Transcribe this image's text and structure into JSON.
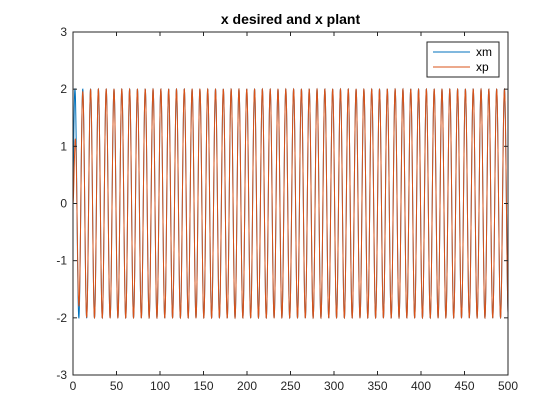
{
  "chart_data": {
    "type": "line",
    "title": "x desired and x plant",
    "xlabel": "",
    "ylabel": "",
    "xlim": [
      0,
      500
    ],
    "ylim": [
      -3,
      3
    ],
    "xticks": [
      0,
      50,
      100,
      150,
      200,
      250,
      300,
      350,
      400,
      450,
      500
    ],
    "yticks": [
      -3,
      -2,
      -1,
      0,
      1,
      2,
      3
    ],
    "grid": false,
    "legend_position": "top-right",
    "series": [
      {
        "name": "xm",
        "color": "#0072BD",
        "function": "2*sin(0.7*t)",
        "amplitude": 2,
        "angular_frequency": 0.7,
        "x_start": 0,
        "x_end": 500
      },
      {
        "name": "xp",
        "color": "#D95319",
        "function": "~2*sin(0.7*t), transient at start",
        "amplitude": 2,
        "angular_frequency": 0.7,
        "x_start": 0,
        "x_end": 500
      }
    ]
  }
}
